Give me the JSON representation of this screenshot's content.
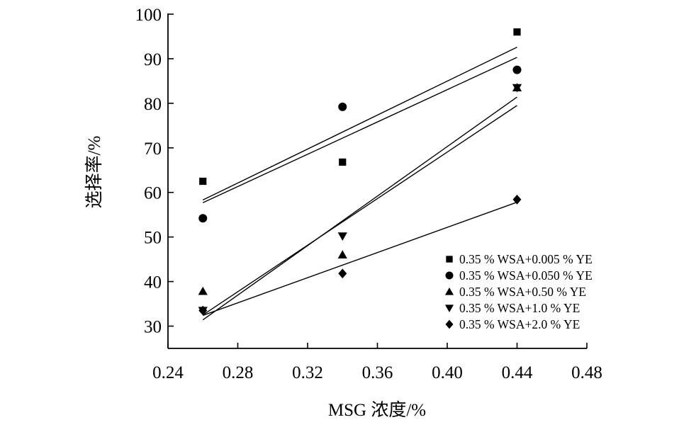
{
  "chart_data": {
    "type": "scatter",
    "xlabel": "MSG 浓度/%",
    "ylabel": "选择率/%",
    "xlim": [
      0.24,
      0.48
    ],
    "ylim": [
      25,
      100
    ],
    "xticks": [
      0.24,
      0.28,
      0.32,
      0.36,
      0.4,
      0.44,
      0.48
    ],
    "xtick_labels": [
      "0.24",
      "0.28",
      "0.32",
      "0.36",
      "0.40",
      "0.44",
      "0.48"
    ],
    "yticks": [
      30,
      40,
      50,
      60,
      70,
      80,
      90,
      100
    ],
    "ytick_labels": [
      "30",
      "40",
      "50",
      "60",
      "70",
      "80",
      "90",
      "100"
    ],
    "grid": false,
    "legend_position": "bottom-right",
    "series": [
      {
        "name": "0.35 % WSA+0.005 % YE",
        "marker": "square",
        "x": [
          0.26,
          0.34,
          0.44
        ],
        "y": [
          62.5,
          66.8,
          96.0
        ],
        "fit": {
          "x": [
            0.26,
            0.44
          ],
          "y": [
            58.3,
            92.6
          ]
        }
      },
      {
        "name": "0.35 % WSA+0.050 % YE",
        "marker": "circle",
        "x": [
          0.26,
          0.34,
          0.44
        ],
        "y": [
          54.2,
          79.2,
          87.5
        ],
        "fit": {
          "x": [
            0.26,
            0.44
          ],
          "y": [
            57.7,
            90.3
          ]
        }
      },
      {
        "name": "0.35 % WSA+0.50 % YE",
        "marker": "triangle-up",
        "x": [
          0.26,
          0.34,
          0.44
        ],
        "y": [
          37.8,
          46.0,
          83.5
        ],
        "fit": {
          "x": [
            0.26,
            0.44
          ],
          "y": [
            31.4,
            81.4
          ]
        }
      },
      {
        "name": "0.35 % WSA+1.0 % YE",
        "marker": "triangle-down",
        "x": [
          0.26,
          0.34,
          0.44
        ],
        "y": [
          33.5,
          50.2,
          83.5
        ],
        "fit": {
          "x": [
            0.26,
            0.44
          ],
          "y": [
            32.5,
            79.5
          ]
        }
      },
      {
        "name": "0.35 % WSA+2.0 % YE",
        "marker": "diamond",
        "x": [
          0.26,
          0.34,
          0.44
        ],
        "y": [
          33.5,
          41.8,
          58.4
        ],
        "fit": {
          "x": [
            0.26,
            0.44
          ],
          "y": [
            32.4,
            57.8
          ]
        }
      }
    ]
  }
}
